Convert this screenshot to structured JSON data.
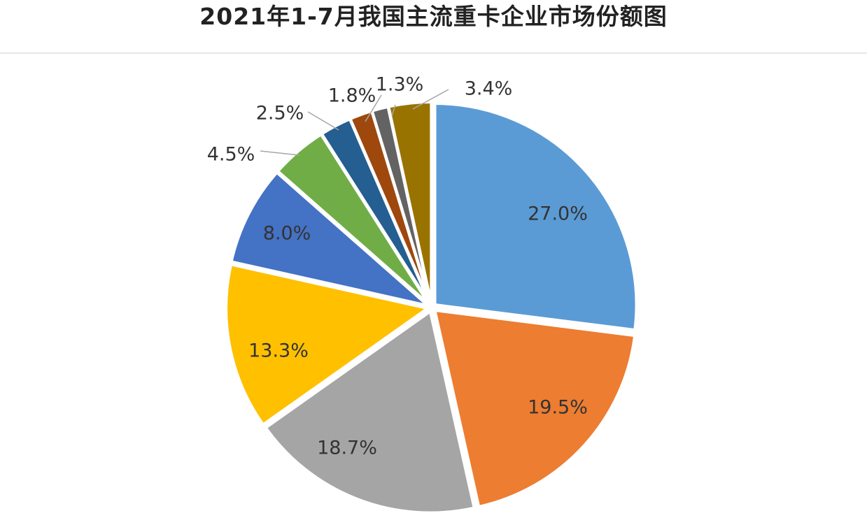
{
  "title": "2021年1-7月我国主流重卡企业市场份额图",
  "chart_data": {
    "type": "pie",
    "title": "2021年1-7月我国主流重卡企业市场份额图",
    "values": [
      27.0,
      19.5,
      18.7,
      13.3,
      8.0,
      4.5,
      2.5,
      1.8,
      1.3,
      3.4
    ],
    "labels": [
      "27.0%",
      "19.5%",
      "18.7%",
      "13.3%",
      "8.0%",
      "4.5%",
      "2.5%",
      "1.8%",
      "1.3%",
      "3.4%"
    ],
    "colors": [
      "#5b9bd5",
      "#ed7d31",
      "#a5a5a5",
      "#ffc000",
      "#4472c4",
      "#70ad47",
      "#255e91",
      "#9e480e",
      "#636363",
      "#997300"
    ],
    "start_angle_deg": 0,
    "direction": "clockwise",
    "leader_lines": [
      false,
      false,
      false,
      false,
      false,
      true,
      true,
      true,
      true,
      true
    ]
  }
}
